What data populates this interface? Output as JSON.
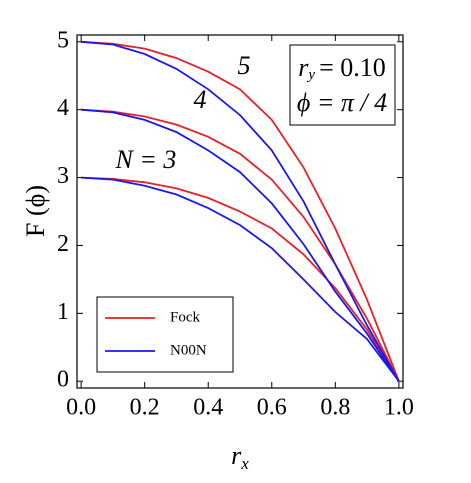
{
  "chart_data": {
    "type": "line",
    "xlabel": {
      "symbol": "r",
      "subscript": "x"
    },
    "ylabel": "F (ϕ)",
    "info": [
      {
        "symbol": "r",
        "subscript": "y",
        "text": "= 0.10"
      },
      {
        "text": "ϕ = π / 4"
      }
    ],
    "x": [
      0,
      0.1,
      0.2,
      0.3,
      0.4,
      0.5,
      0.6,
      0.7,
      0.8,
      0.9,
      1.0
    ],
    "series": [
      {
        "name": "Fock",
        "label": "5",
        "color": "#e8202a",
        "values": [
          5,
          4.97,
          4.9,
          4.76,
          4.56,
          4.3,
          3.85,
          3.15,
          2.25,
          1.2,
          0
        ]
      },
      {
        "name": "Fock",
        "label": "4",
        "color": "#e8202a",
        "values": [
          4,
          3.97,
          3.9,
          3.78,
          3.6,
          3.35,
          2.97,
          2.42,
          1.72,
          0.92,
          0
        ]
      },
      {
        "name": "Fock",
        "label": "N = 3",
        "color": "#e8202a",
        "values": [
          3,
          2.98,
          2.93,
          2.84,
          2.7,
          2.5,
          2.25,
          1.87,
          1.37,
          0.76,
          0
        ]
      },
      {
        "name": "N00N",
        "color": "#1a1ae8",
        "values": [
          5,
          4.96,
          4.82,
          4.6,
          4.3,
          3.92,
          3.4,
          2.65,
          1.72,
          0.82,
          0
        ]
      },
      {
        "name": "N00N",
        "color": "#1a1ae8",
        "values": [
          4,
          3.96,
          3.85,
          3.67,
          3.4,
          3.08,
          2.62,
          2.02,
          1.32,
          0.7,
          0
        ]
      },
      {
        "name": "N00N",
        "color": "#1a1ae8",
        "values": [
          3,
          2.97,
          2.88,
          2.75,
          2.55,
          2.3,
          1.96,
          1.5,
          1.02,
          0.62,
          0
        ]
      }
    ],
    "xlim": [
      -0.013,
      1.013
    ],
    "ylim": [
      -0.1,
      5.1
    ],
    "xticks": [
      {
        "value": 0,
        "label": "0.0"
      },
      0.2,
      0.4,
      0.6,
      0.8,
      {
        "value": 1.0,
        "label": "1.0"
      }
    ],
    "yticks": [
      0,
      1,
      2,
      3,
      4,
      5
    ],
    "legend_position": "lower left"
  }
}
